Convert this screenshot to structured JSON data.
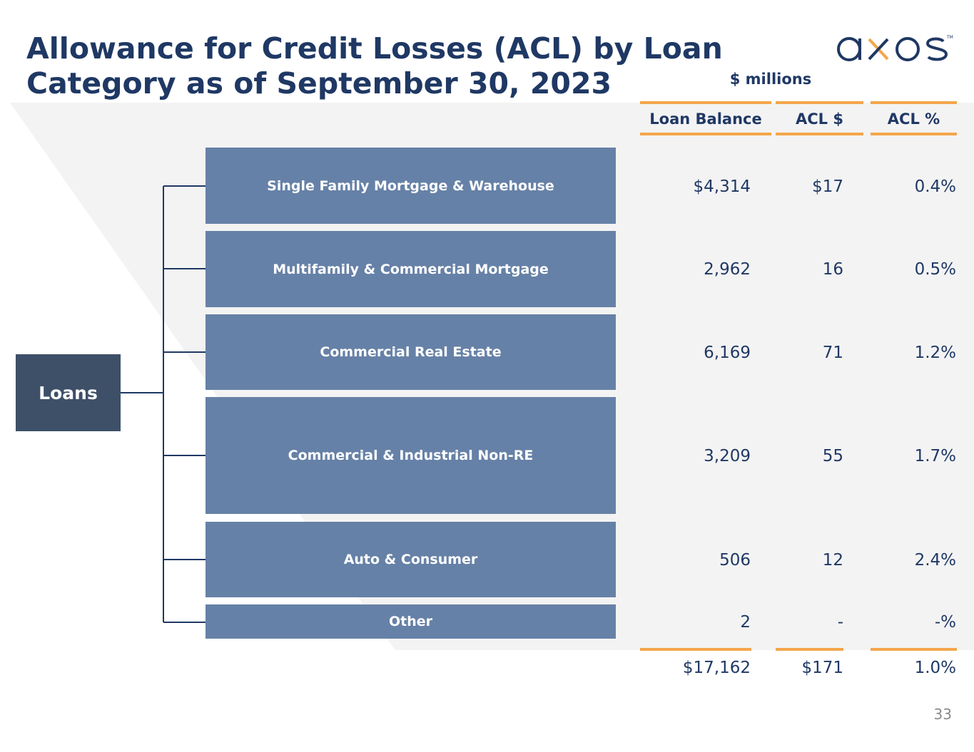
{
  "title_line1": "Allowance for Credit Losses (ACL) by Loan",
  "title_line2": "Category as of September 30, 2023",
  "logo_text": "axos",
  "units": "$ millions",
  "columns": {
    "loan_balance": "Loan Balance",
    "acl_dollars": "ACL $",
    "acl_pct": "ACL %"
  },
  "root_label": "Loans",
  "rows": [
    {
      "category": "Single Family Mortgage & Warehouse",
      "loan_balance": "$4,314",
      "acl_dollars": "$17",
      "acl_pct": "0.4%"
    },
    {
      "category": "Multifamily & Commercial Mortgage",
      "loan_balance": "2,962",
      "acl_dollars": "16",
      "acl_pct": "0.5%"
    },
    {
      "category": "Commercial Real Estate",
      "loan_balance": "6,169",
      "acl_dollars": "71",
      "acl_pct": "1.2%"
    },
    {
      "category": "Commercial & Industrial Non-RE",
      "loan_balance": "3,209",
      "acl_dollars": "55",
      "acl_pct": "1.7%"
    },
    {
      "category": "Auto & Consumer",
      "loan_balance": "506",
      "acl_dollars": "12",
      "acl_pct": "2.4%"
    },
    {
      "category": "Other",
      "loan_balance": "2",
      "acl_dollars": "-",
      "acl_pct": "-%"
    }
  ],
  "totals": {
    "loan_balance": "$17,162",
    "acl_dollars": "$171",
    "acl_pct": "1.0%"
  },
  "page_number": "33",
  "colors": {
    "navy": "#1f3864",
    "box_dark": "#3d5068",
    "box_light": "#6681a7",
    "accent_orange": "#f4a64a",
    "panel_gray": "#f3f3f3"
  }
}
